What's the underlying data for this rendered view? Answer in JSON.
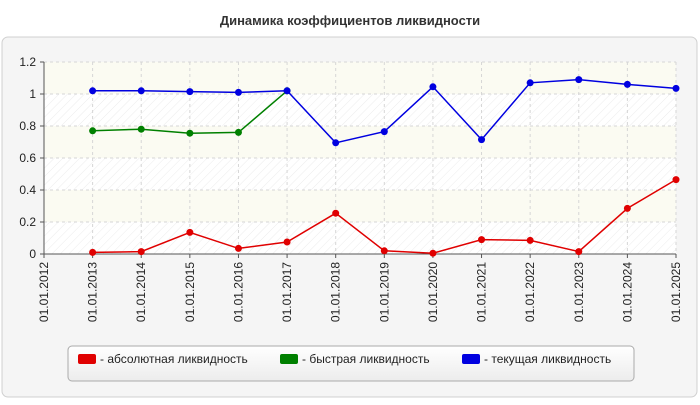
{
  "chart_data": {
    "type": "line",
    "title": "Динамика коэффициентов ликвидности",
    "xlabel": "",
    "ylabel": "",
    "ylim": [
      0,
      1.2
    ],
    "yticks": [
      "0",
      "0.2",
      "0.4",
      "0.6",
      "0.8",
      "1",
      "1.2"
    ],
    "categories": [
      "01.01.2012",
      "01.01.2013",
      "01.01.2014",
      "01.01.2015",
      "01.01.2016",
      "01.01.2017",
      "01.01.2018",
      "01.01.2019",
      "01.01.2020",
      "01.01.2021",
      "01.01.2022",
      "01.01.2023",
      "01.01.2024",
      "01.01.2025"
    ],
    "series": [
      {
        "name": "- абсолютная ликвидность",
        "color": "#e00000",
        "values": [
          null,
          0.01,
          0.015,
          0.135,
          0.035,
          0.075,
          0.255,
          0.02,
          0.005,
          0.09,
          0.085,
          0.015,
          0.285,
          0.465
        ]
      },
      {
        "name": "- быстрая ликвидность",
        "color": "#008000",
        "values": [
          null,
          0.77,
          0.78,
          0.755,
          0.76,
          1.02,
          null,
          null,
          null,
          null,
          null,
          null,
          null,
          null
        ]
      },
      {
        "name": "- текущая ликвидность",
        "color": "#0000e0",
        "values": [
          null,
          1.02,
          1.02,
          1.015,
          1.01,
          1.02,
          0.695,
          0.765,
          1.045,
          0.715,
          1.07,
          1.09,
          1.06,
          1.035
        ]
      }
    ],
    "grid": true,
    "legend_position": "bottom"
  }
}
